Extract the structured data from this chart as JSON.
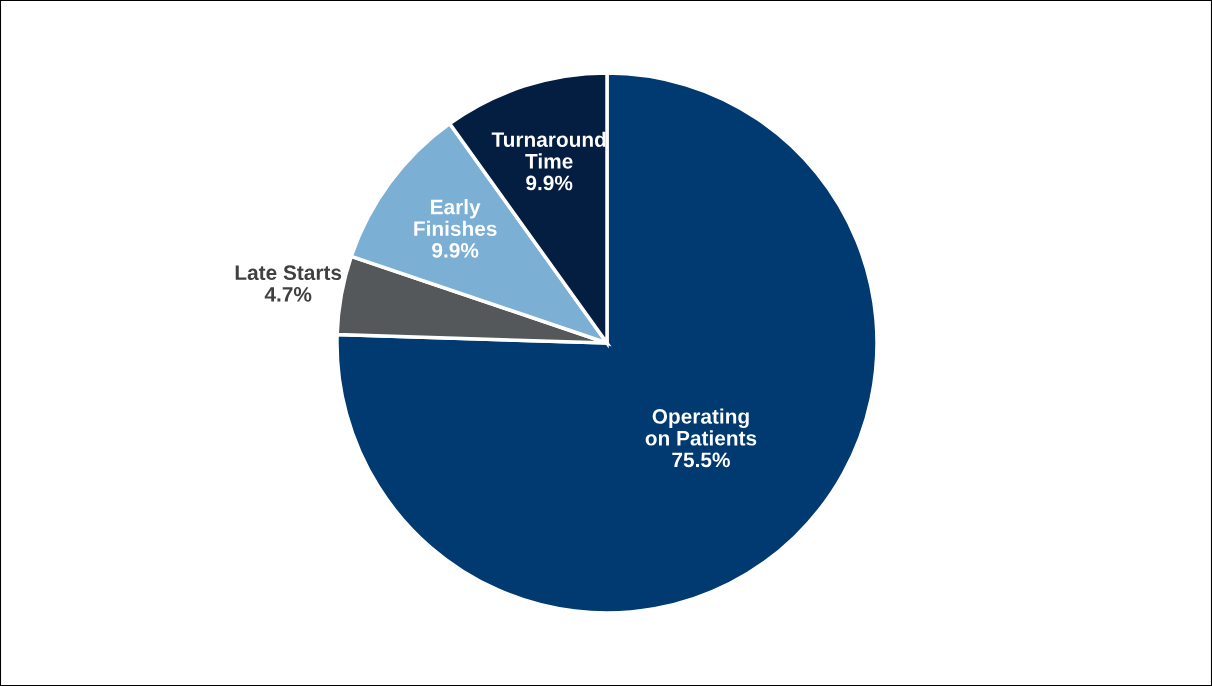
{
  "chart_data": {
    "type": "pie",
    "categories": [
      "Operating\non Patients",
      "Late Starts",
      "Early\nFinishes",
      "Turnaround\nTime"
    ],
    "values": [
      75.5,
      4.7,
      9.9,
      9.9
    ],
    "value_labels": [
      "75.5%",
      "4.7%",
      "9.9%",
      "9.9%"
    ],
    "colors": [
      "#003a70",
      "#54585a",
      "#7bafd4",
      "#041e42"
    ],
    "legend": false
  }
}
